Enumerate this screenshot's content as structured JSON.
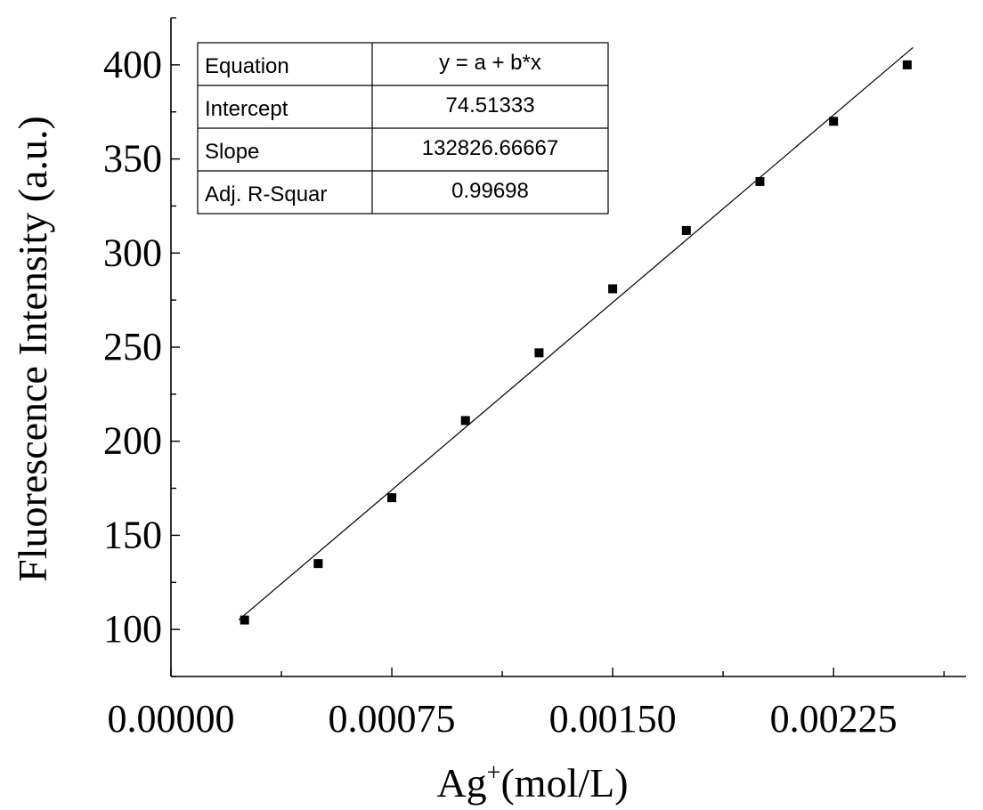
{
  "chart_data": {
    "type": "scatter",
    "title": "",
    "xlabel_main": "Ag",
    "xlabel_sup": "+",
    "xlabel_unit": "(mol/L)",
    "ylabel": "Fluorescence Intensity (a.u.)",
    "xlim": [
      0,
      0.0027
    ],
    "ylim": [
      75,
      425
    ],
    "x_ticks": [
      0.0,
      0.00075,
      0.0015,
      0.00225
    ],
    "x_tick_labels": [
      "0.00000",
      "0.00075",
      "0.00150",
      "0.00225"
    ],
    "y_ticks": [
      100,
      150,
      200,
      250,
      300,
      350,
      400
    ],
    "y_tick_labels": [
      "100",
      "150",
      "200",
      "250",
      "300",
      "350",
      "400"
    ],
    "grid": false,
    "series": [
      {
        "x": [
          0.00025,
          0.0005,
          0.00075,
          0.001,
          0.00125,
          0.0015,
          0.00175,
          0.002,
          0.00225,
          0.0025
        ],
        "y": [
          105,
          135,
          170,
          211,
          247,
          281,
          312,
          338,
          370,
          400
        ]
      }
    ],
    "fit": {
      "intercept": 74.51333,
      "slope": 132826.66667
    },
    "stats_table": {
      "rows": [
        {
          "label": "Equation",
          "value": "y = a + b*x"
        },
        {
          "label": "Intercept",
          "value": "74.51333"
        },
        {
          "label": "Slope",
          "value": "132826.66667"
        },
        {
          "label": "Adj. R-Squar",
          "value": "0.99698"
        }
      ]
    }
  }
}
